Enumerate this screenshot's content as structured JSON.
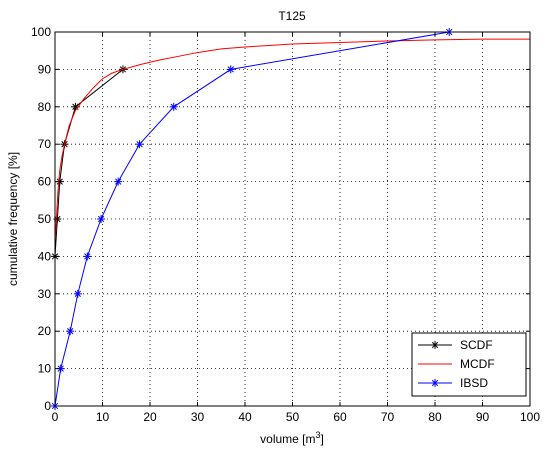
{
  "chart_data": {
    "type": "line",
    "title": "T125",
    "xlabel": "volume [m",
    "xlabel_sup": "3",
    "xlabel_end": "]",
    "ylabel": "cumulative frequency [%]",
    "xlim": [
      0,
      100
    ],
    "ylim": [
      0,
      100
    ],
    "xticks": [
      0,
      10,
      20,
      30,
      40,
      50,
      60,
      70,
      80,
      90,
      100
    ],
    "yticks": [
      0,
      10,
      20,
      30,
      40,
      50,
      60,
      70,
      80,
      90,
      100
    ],
    "ytick_labels": [
      "0",
      "10",
      "20",
      "30",
      "40",
      "50",
      "60",
      "70",
      "80",
      "90",
      "100"
    ],
    "xtick_labels": [
      "0",
      "10",
      "20",
      "30",
      "40",
      "50",
      "60",
      "70",
      "80",
      "90",
      "100"
    ],
    "grid": true,
    "legend_position": "bottom-right",
    "series": [
      {
        "name": "SCDF",
        "color": "#000000",
        "marker": "asterisk",
        "x": [
          0,
          0.5,
          1.0,
          2.0,
          4.3,
          14.3
        ],
        "y": [
          40,
          50,
          60,
          70,
          80,
          90
        ]
      },
      {
        "name": "MCDF",
        "color": "#ff0000",
        "marker": "none",
        "x": [
          0,
          0.3,
          0.6,
          1.0,
          1.5,
          2.2,
          3.0,
          4.3,
          6,
          8,
          10,
          12,
          14.3,
          18,
          22,
          26,
          30,
          35,
          40,
          45,
          50,
          60,
          70,
          80,
          90,
          100
        ],
        "y": [
          44,
          50,
          57,
          63,
          67,
          71,
          75,
          79,
          82,
          85,
          87.5,
          89,
          90,
          91.3,
          92.5,
          93.5,
          94.5,
          95.5,
          96,
          96.4,
          96.8,
          97.2,
          97.6,
          97.9,
          98.1,
          98.1
        ]
      },
      {
        "name": "IBSD",
        "color": "#0000ff",
        "marker": "asterisk",
        "x": [
          0,
          1.2,
          3.2,
          4.8,
          6.8,
          9.7,
          13.3,
          17.8,
          25,
          37,
          83
        ],
        "y": [
          0,
          10,
          20,
          30,
          40,
          50,
          60,
          70,
          80,
          90,
          100
        ]
      }
    ]
  }
}
